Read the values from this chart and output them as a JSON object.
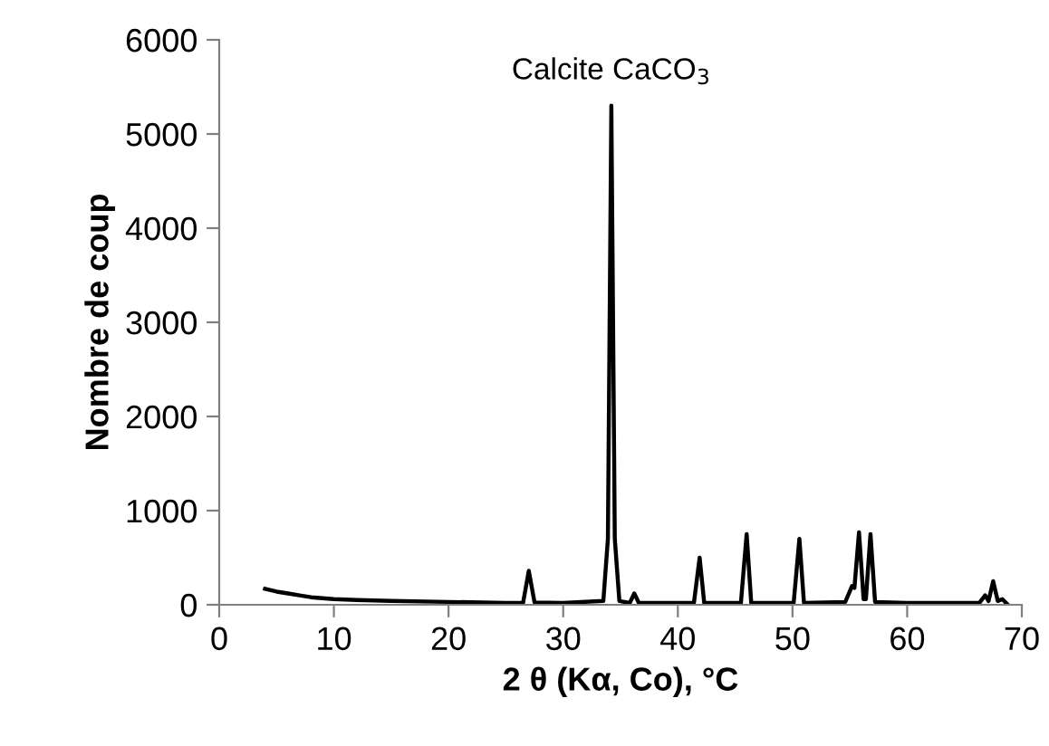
{
  "chart_data": {
    "type": "line",
    "xlabel": "2 θ (Kα, Co), °C",
    "ylabel": "Nombre de coup",
    "x": [
      4,
      5,
      6,
      7,
      8,
      10,
      12,
      15,
      20,
      25,
      26.5,
      27,
      27.5,
      30,
      33.5,
      33.9,
      34.2,
      34.5,
      34.9,
      35.8,
      36.2,
      36.6,
      41.4,
      41.9,
      42.3,
      45.5,
      46,
      46.4,
      50.1,
      50.6,
      51,
      54.6,
      55.2,
      55.4,
      55.8,
      56.2,
      56.4,
      56.8,
      57.2,
      60,
      66.3,
      66.8,
      67.1,
      67.5,
      67.9,
      68.3,
      68.7
    ],
    "series": [
      {
        "color": "#000000",
        "values": [
          170,
          140,
          120,
          100,
          80,
          60,
          50,
          40,
          30,
          20,
          20,
          360,
          25,
          20,
          40,
          700,
          5300,
          700,
          40,
          20,
          120,
          20,
          20,
          500,
          20,
          20,
          750,
          20,
          20,
          700,
          20,
          30,
          200,
          180,
          770,
          60,
          60,
          750,
          30,
          20,
          20,
          100,
          40,
          250,
          40,
          60,
          10
        ]
      }
    ],
    "xlim": [
      0,
      70
    ],
    "ylim": [
      0,
      6000
    ],
    "xticks": [
      0,
      10,
      20,
      30,
      40,
      50,
      60,
      70
    ],
    "yticks": [
      0,
      1000,
      2000,
      3000,
      4000,
      5000,
      6000
    ],
    "annotations": [
      {
        "text": "Calcite CaCO$_{3}$",
        "x": 34.2,
        "y": 5300
      }
    ],
    "grid": false
  }
}
